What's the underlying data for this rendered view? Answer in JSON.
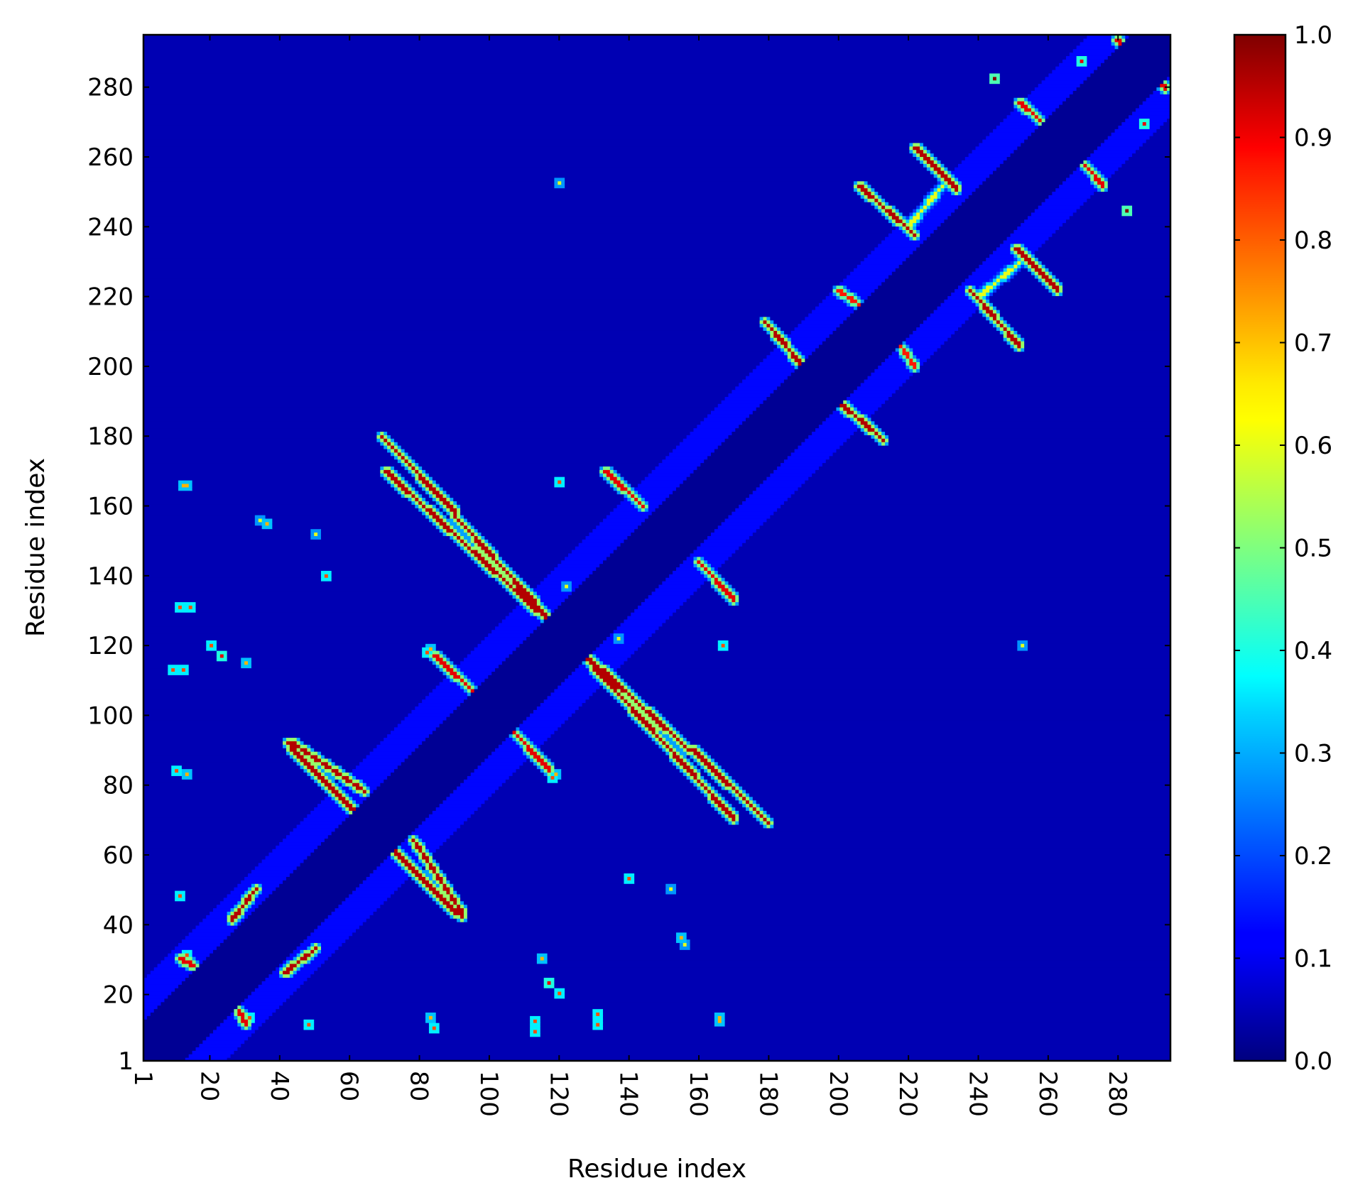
{
  "chart_data": {
    "type": "heatmap",
    "title": "",
    "xlabel": "Residue index",
    "ylabel": "Residue index",
    "xlim": [
      1,
      295
    ],
    "ylim": [
      1,
      295
    ],
    "x_ticks": [
      1,
      20,
      40,
      60,
      80,
      100,
      120,
      140,
      160,
      180,
      200,
      220,
      240,
      260,
      280
    ],
    "y_ticks": [
      1,
      20,
      40,
      60,
      80,
      100,
      120,
      140,
      160,
      180,
      200,
      220,
      240,
      260,
      280
    ],
    "x_tick_labels": [
      "1",
      "20",
      "40",
      "60",
      "80",
      "100",
      "120",
      "140",
      "160",
      "180",
      "200",
      "220",
      "240",
      "260",
      "280"
    ],
    "y_tick_labels": [
      "1",
      "20",
      "40",
      "60",
      "80",
      "100",
      "120",
      "140",
      "160",
      "180",
      "200",
      "220",
      "240",
      "260",
      "280"
    ],
    "x_tick_rotation": "vertical",
    "colormap": "jet",
    "colorbar": {
      "vmin": 0.0,
      "vmax": 1.0,
      "ticks": [
        0.0,
        0.1,
        0.2,
        0.3,
        0.4,
        0.5,
        0.6,
        0.7,
        0.8,
        0.9,
        1.0
      ],
      "tick_labels": [
        "0.0",
        "0.1",
        "0.2",
        "0.3",
        "0.4",
        "0.5",
        "0.6",
        "0.7",
        "0.8",
        "0.9",
        "1.0"
      ]
    },
    "background_value": 0.05,
    "masked_band": {
      "offset_from_diagonal": 12,
      "value": 0.02
    },
    "band_edge": {
      "offset_from_diagonal": [
        12,
        24
      ],
      "value": 0.13
    },
    "symmetric": true,
    "contact_segments": [
      {
        "from": [
          11,
          30
        ],
        "to": [
          16,
          27
        ],
        "value": 0.9
      },
      {
        "from": [
          41,
          26
        ],
        "to": [
          50,
          33
        ],
        "value": 0.95
      },
      {
        "from": [
          43,
          92
        ],
        "to": [
          64,
          78
        ],
        "value": 0.95
      },
      {
        "from": [
          42,
          92
        ],
        "to": [
          90,
          43
        ],
        "value": 0.95
      },
      {
        "from": [
          69,
          180
        ],
        "to": [
          90,
          158
        ],
        "value": 0.95
      },
      {
        "from": [
          84,
          117
        ],
        "to": [
          97,
          105
        ],
        "value": 0.9
      },
      {
        "from": [
          133,
          170
        ],
        "to": [
          144,
          160
        ],
        "value": 0.9
      },
      {
        "from": [
          90,
          157
        ],
        "to": [
          170,
          70
        ],
        "value": 0.95
      },
      {
        "from": [
          179,
          213
        ],
        "to": [
          190,
          200
        ],
        "value": 0.95
      },
      {
        "from": [
          200,
          222
        ],
        "to": [
          206,
          218
        ],
        "value": 0.85
      },
      {
        "from": [
          206,
          252
        ],
        "to": [
          222,
          238
        ],
        "value": 0.95
      },
      {
        "from": [
          222,
          263
        ],
        "to": [
          234,
          251
        ],
        "value": 0.95
      },
      {
        "from": [
          221,
          241
        ],
        "to": [
          230,
          252
        ],
        "value": 0.6
      },
      {
        "from": [
          252,
          276
        ],
        "to": [
          258,
          271
        ],
        "value": 0.9
      },
      {
        "from": [
          280,
          294
        ],
        "to": [
          294,
          280
        ],
        "value": 0.9
      }
    ],
    "contact_blobs": [
      {
        "x": 245,
        "y": 283,
        "value": 1.0
      },
      {
        "x": 270,
        "y": 288,
        "value": 0.9
      },
      {
        "x": 283,
        "y": 293,
        "value": 0.85
      },
      {
        "x": 14,
        "y": 131,
        "value": 0.8
      },
      {
        "x": 12,
        "y": 113,
        "value": 0.8
      },
      {
        "x": 20,
        "y": 120,
        "value": 0.8
      },
      {
        "x": 10,
        "y": 84,
        "value": 0.8
      },
      {
        "x": 11,
        "y": 48,
        "value": 0.8
      },
      {
        "x": 12,
        "y": 166,
        "value": 0.7
      },
      {
        "x": 31,
        "y": 13,
        "value": 0.8
      },
      {
        "x": 30,
        "y": 115,
        "value": 0.7
      },
      {
        "x": 34,
        "y": 156,
        "value": 0.6
      },
      {
        "x": 53,
        "y": 140,
        "value": 0.8
      },
      {
        "x": 82,
        "y": 118,
        "value": 0.8
      },
      {
        "x": 83,
        "y": 13,
        "value": 0.7
      },
      {
        "x": 117,
        "y": 23,
        "value": 0.9
      },
      {
        "x": 113,
        "y": 9,
        "value": 0.8
      },
      {
        "x": 131,
        "y": 11,
        "value": 0.8
      },
      {
        "x": 119,
        "y": 83,
        "value": 0.7
      },
      {
        "x": 120,
        "y": 167,
        "value": 0.8
      },
      {
        "x": 120,
        "y": 253,
        "value": 0.6
      },
      {
        "x": 137,
        "y": 122,
        "value": 0.6
      },
      {
        "x": 122,
        "y": 137,
        "value": 0.6
      },
      {
        "x": 155,
        "y": 36,
        "value": 0.7
      },
      {
        "x": 166,
        "y": 13,
        "value": 0.7
      },
      {
        "x": 152,
        "y": 50,
        "value": 0.6
      }
    ]
  }
}
